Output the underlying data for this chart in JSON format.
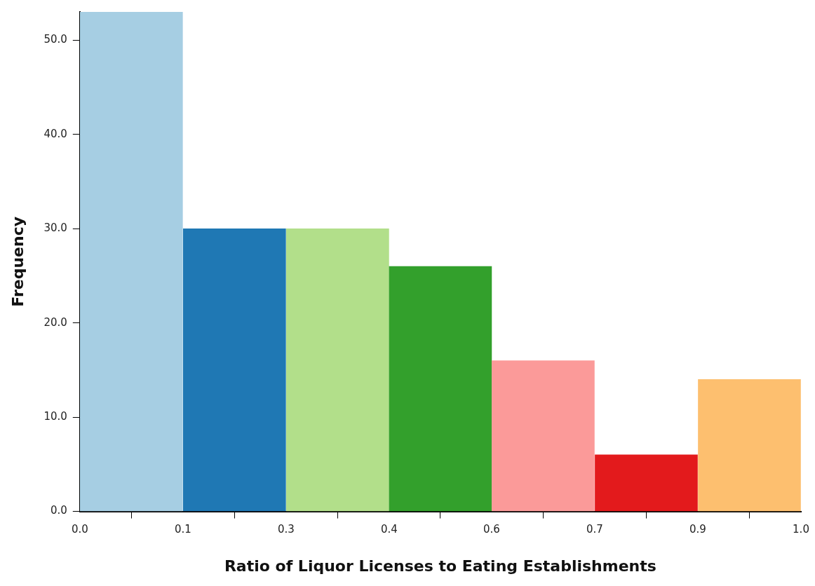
{
  "chart_data": {
    "type": "histogram",
    "xlabel": "Ratio of Liquor Licenses to Eating Establishments",
    "ylabel": "Frequency",
    "bins": [
      0,
      0.143,
      0.286,
      0.429,
      0.571,
      0.714,
      0.857,
      1.0
    ],
    "values": [
      53,
      30,
      30,
      26,
      16,
      6,
      14
    ],
    "colors": [
      "#a6cee3",
      "#1f78b4",
      "#b2df8a",
      "#33a02c",
      "#fb9a99",
      "#e31a1c",
      "#fdbf6f"
    ],
    "xlim": [
      0,
      1
    ],
    "xticks": [
      {
        "value": 0,
        "label": "0.0"
      },
      {
        "value": 0.143,
        "label": "0.1"
      },
      {
        "value": 0.286,
        "label": "0.3"
      },
      {
        "value": 0.429,
        "label": "0.4"
      },
      {
        "value": 0.571,
        "label": "0.6"
      },
      {
        "value": 0.714,
        "label": "0.7"
      },
      {
        "value": 0.857,
        "label": "0.9"
      },
      {
        "value": 1,
        "label": "1.0"
      }
    ],
    "ylim": [
      0,
      53
    ],
    "yticks": [
      {
        "value": 0,
        "label": "0.0"
      },
      {
        "value": 10,
        "label": "10.0"
      },
      {
        "value": 20,
        "label": "20.0"
      },
      {
        "value": 30,
        "label": "30.0"
      },
      {
        "value": 40,
        "label": "40.0"
      },
      {
        "value": 50,
        "label": "50.0"
      }
    ],
    "grid": false,
    "legend": false
  }
}
